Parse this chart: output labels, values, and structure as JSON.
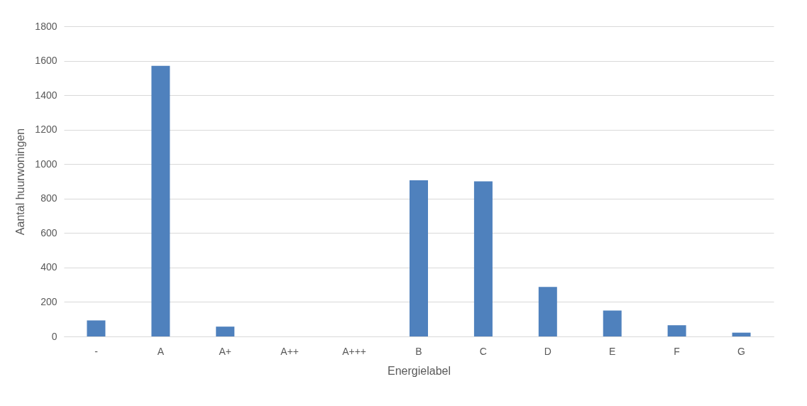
{
  "chart_data": {
    "type": "bar",
    "categories": [
      "-",
      "A",
      "A+",
      "A++",
      "A+++",
      "B",
      "C",
      "D",
      "E",
      "F",
      "G"
    ],
    "values": [
      93,
      1570,
      57,
      0,
      0,
      906,
      900,
      287,
      150,
      65,
      22
    ],
    "color": "#4f81bd",
    "xlabel": "Energielabel",
    "ylabel": "Aantal huurwoningen",
    "ylim": [
      0,
      1800
    ],
    "yticks": [
      0,
      200,
      400,
      600,
      800,
      1000,
      1200,
      1400,
      1600,
      1800
    ],
    "grid": "y"
  }
}
